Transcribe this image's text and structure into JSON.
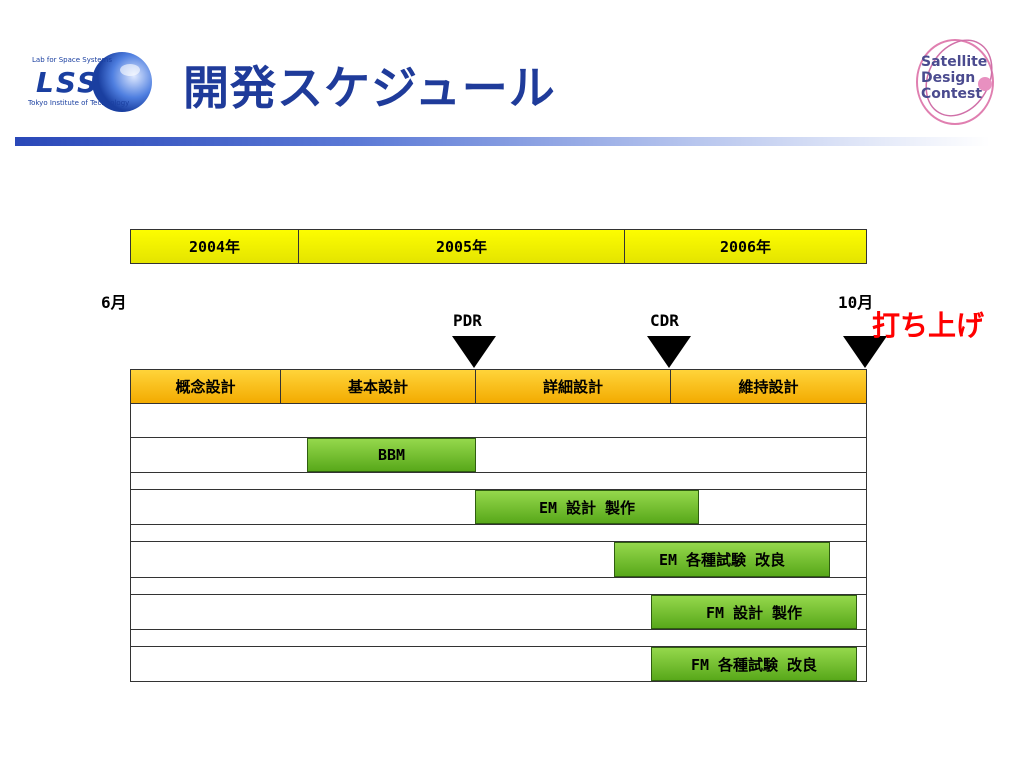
{
  "header": {
    "title": "開発スケジュール",
    "lss_logo": {
      "line1": "Lab for Space Systems",
      "mark": "LSS",
      "line2": "Tokyo Institute of Technology"
    },
    "sdc_logo": {
      "line1": "Satellite",
      "line2": "Design",
      "line3": "Contest"
    }
  },
  "schedule": {
    "years": [
      "2004年",
      "2005年",
      "2006年"
    ],
    "start_label": "6月",
    "end_label": "10月",
    "milestones": [
      {
        "label": "PDR"
      },
      {
        "label": "CDR"
      }
    ],
    "launch_label": "打ち上げ",
    "phases": [
      "概念設計",
      "基本設計",
      "詳細設計",
      "維持設計"
    ],
    "tasks": [
      "BBM",
      "EM 設計 製作",
      "EM 各種試験 改良",
      "FM 設計 製作",
      "FM 各種試験 改良"
    ]
  }
}
